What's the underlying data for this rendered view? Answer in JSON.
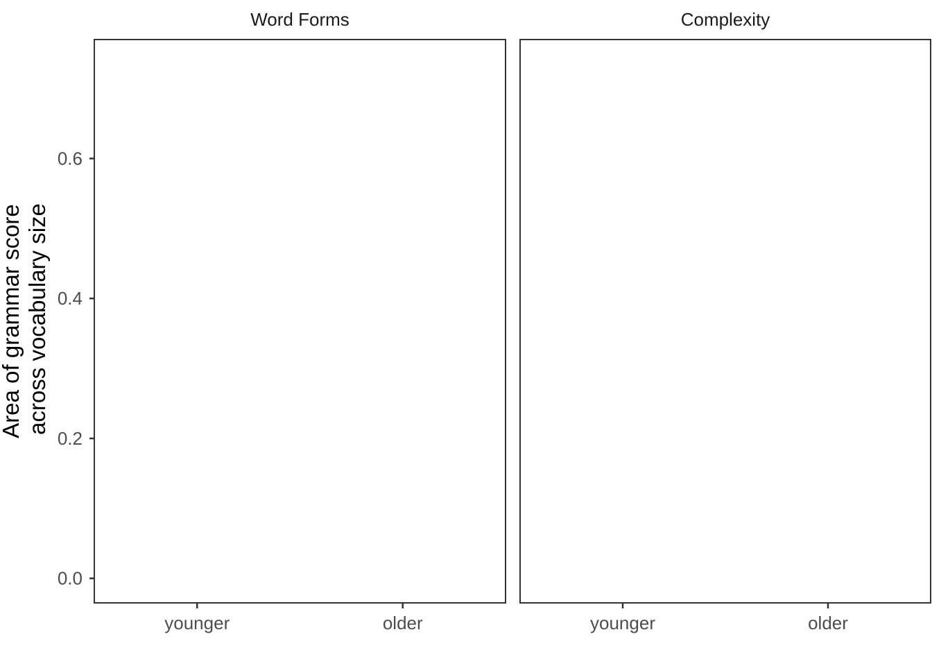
{
  "chart_data": {
    "type": "scatter",
    "ylabel_lines": [
      "Area of grammar score",
      "across vocabulary size"
    ],
    "ylim": [
      -0.035,
      0.77
    ],
    "y_ticks": [
      0.0,
      0.2,
      0.4,
      0.6
    ],
    "y_tick_labels": [
      "0.0",
      "0.2",
      "0.4",
      "0.6"
    ],
    "x_range_slots": [
      0.5,
      2.5
    ],
    "categories": [
      "younger",
      "older"
    ],
    "category_positions": [
      1,
      2
    ],
    "grid": false,
    "panels": [
      {
        "title": "Word Forms",
        "series": []
      },
      {
        "title": "Complexity",
        "series": []
      }
    ]
  },
  "colors": {
    "panel_border": "#333333",
    "tick": "#333333",
    "tick_label": "#4d4d4d",
    "background": "#ffffff"
  }
}
